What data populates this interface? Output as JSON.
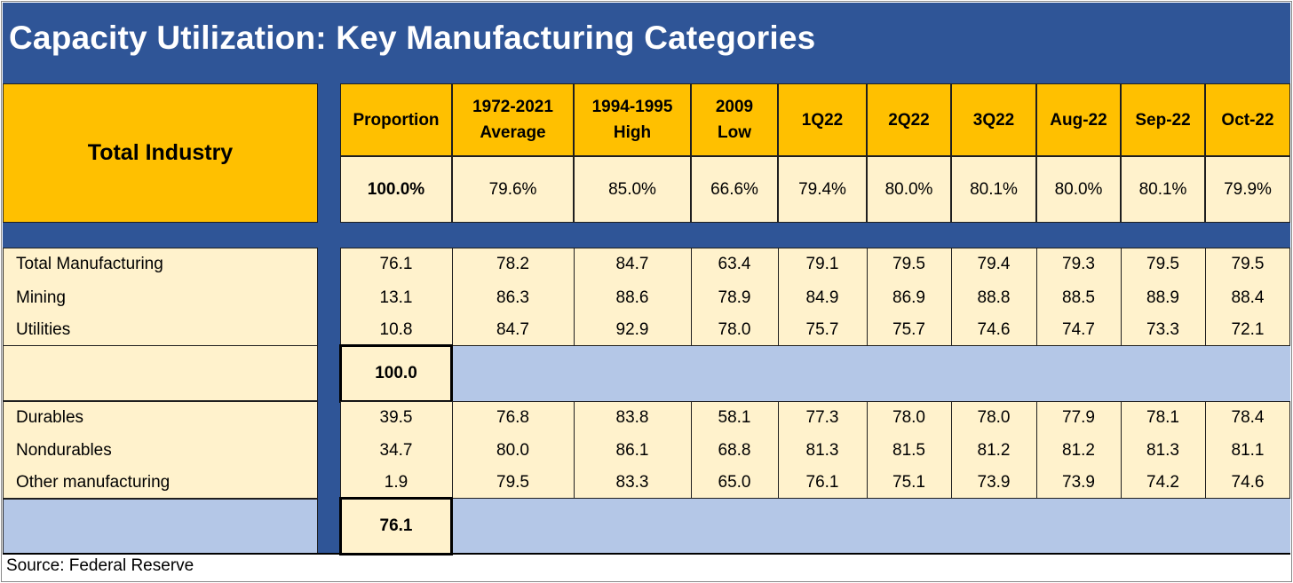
{
  "chart_data": {
    "type": "table",
    "title": "Capacity Utilization: Key Manufacturing Categories",
    "header_label": "Total Industry",
    "columns": [
      "Proportion",
      "1972-2021 Average",
      "1994-1995 High",
      "2009 Low",
      "1Q22",
      "2Q22",
      "3Q22",
      "Aug-22",
      "Sep-22",
      "Oct-22"
    ],
    "column_lines": [
      [
        "Proportion"
      ],
      [
        "1972-2021",
        "Average"
      ],
      [
        "1994-1995",
        "High"
      ],
      [
        "2009",
        "Low"
      ],
      [
        "1Q22"
      ],
      [
        "2Q22"
      ],
      [
        "3Q22"
      ],
      [
        "Aug-22"
      ],
      [
        "Sep-22"
      ],
      [
        "Oct-22"
      ]
    ],
    "total_industry": [
      "100.0%",
      "79.6%",
      "85.0%",
      "66.6%",
      "79.4%",
      "80.0%",
      "80.1%",
      "80.0%",
      "80.1%",
      "79.9%"
    ],
    "group1": [
      {
        "label": "Total Manufacturing",
        "values": [
          "76.1",
          "78.2",
          "84.7",
          "63.4",
          "79.1",
          "79.5",
          "79.4",
          "79.3",
          "79.5",
          "79.5"
        ]
      },
      {
        "label": "Mining",
        "values": [
          "13.1",
          "86.3",
          "88.6",
          "78.9",
          "84.9",
          "86.9",
          "88.8",
          "88.5",
          "88.9",
          "88.4"
        ]
      },
      {
        "label": "Utilities",
        "values": [
          "10.8",
          "84.7",
          "92.9",
          "78.0",
          "75.7",
          "75.7",
          "74.6",
          "74.7",
          "73.3",
          "72.1"
        ]
      }
    ],
    "group1_total": "100.0",
    "group2": [
      {
        "label": "Durables",
        "values": [
          "39.5",
          "76.8",
          "83.8",
          "58.1",
          "77.3",
          "78.0",
          "78.0",
          "77.9",
          "78.1",
          "78.4"
        ]
      },
      {
        "label": "Nondurables",
        "values": [
          "34.7",
          "80.0",
          "86.1",
          "68.8",
          "81.3",
          "81.5",
          "81.2",
          "81.2",
          "81.3",
          "81.1"
        ]
      },
      {
        "label": "Other manufacturing",
        "values": [
          "1.9",
          "79.5",
          "83.3",
          "65.0",
          "76.1",
          "75.1",
          "73.9",
          "73.9",
          "74.2",
          "74.6"
        ]
      }
    ],
    "group2_total": "76.1",
    "source": "Source: Federal Reserve"
  },
  "colors": {
    "title_bar": "#2f5597",
    "header_fill": "#ffc000",
    "cell_fill": "#fff2cc",
    "blank_fill": "#b4c7e7"
  }
}
